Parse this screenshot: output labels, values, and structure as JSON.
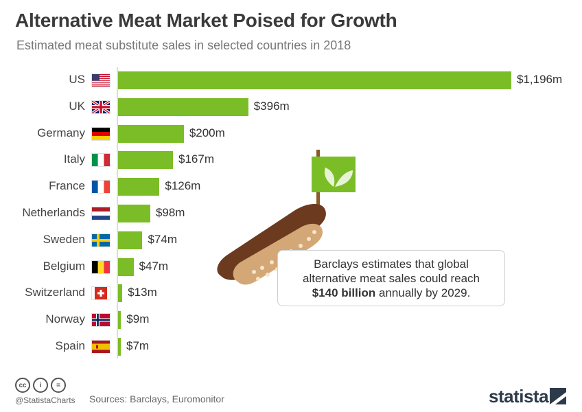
{
  "header": {
    "title": "Alternative Meat Market Poised for Growth",
    "subtitle": "Estimated meat substitute sales in selected countries in 2018"
  },
  "chart_data": {
    "type": "bar",
    "orientation": "horizontal",
    "title": "Alternative Meat Market Poised for Growth",
    "subtitle": "Estimated meat substitute sales in selected countries in 2018",
    "unit": "$m",
    "categories": [
      "US",
      "UK",
      "Germany",
      "Italy",
      "France",
      "Netherlands",
      "Sweden",
      "Belgium",
      "Switzerland",
      "Norway",
      "Spain"
    ],
    "values": [
      1196,
      396,
      200,
      167,
      126,
      98,
      74,
      47,
      13,
      9,
      7
    ],
    "value_labels": [
      "$1,196m",
      "$396m",
      "$200m",
      "$167m",
      "$126m",
      "$98m",
      "$74m",
      "$47m",
      "$13m",
      "$9m",
      "$7m"
    ],
    "xlim": [
      0,
      1196
    ],
    "bar_color": "#7bbd27",
    "grid": false,
    "legend": "none"
  },
  "flags": [
    "us",
    "uk",
    "de",
    "it",
    "fr",
    "nl",
    "se",
    "be",
    "ch",
    "no",
    "es"
  ],
  "callout": {
    "line1": "Barclays estimates that global",
    "line2": "alternative meat sales could reach",
    "bold": "$140 billion",
    "line3_rest": " annually by 2029."
  },
  "illustration": {
    "icon": "veggie-sausage-with-leaf-flag-icon",
    "flag_color": "#7bbd27"
  },
  "footer": {
    "icons": [
      "cc",
      "by",
      "nd"
    ],
    "icon_labels": [
      "cc",
      "i",
      "="
    ],
    "handle": "@StatistaCharts",
    "sources": "Sources: Barclays, Euromonitor",
    "brand": "statista"
  }
}
